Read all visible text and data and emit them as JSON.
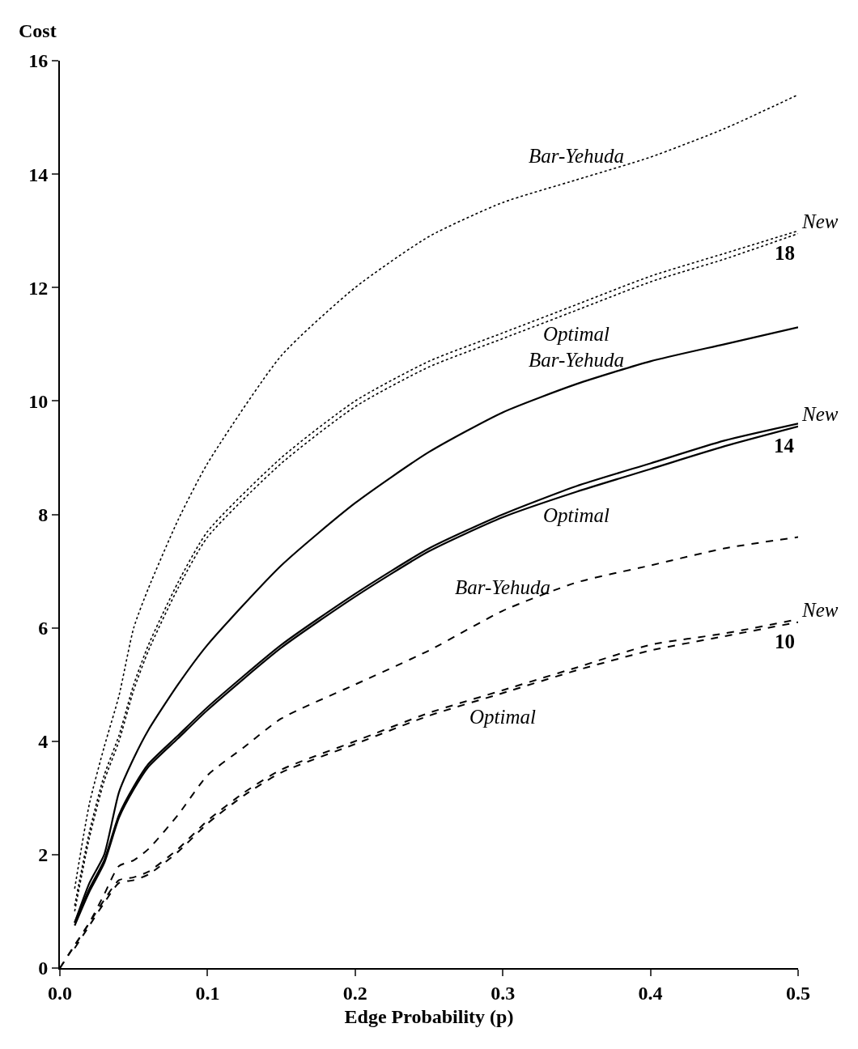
{
  "chart_data": {
    "type": "line",
    "xlabel": "Edge Probability (p)",
    "ylabel": "Cost",
    "xlim": [
      0,
      0.5
    ],
    "ylim": [
      0,
      16
    ],
    "xticks": [
      {
        "value": 0,
        "label": "0.0"
      },
      0.1,
      0.2,
      0.3,
      0.4,
      0.5
    ],
    "yticks": [
      0,
      2,
      4,
      6,
      8,
      10,
      12,
      14,
      16
    ],
    "grid": false,
    "legend": false,
    "series": [
      {
        "name": "Bar-Yehuda",
        "color": "#000000",
        "line_style": "dotted",
        "x": [
          0.01,
          0.02,
          0.03,
          0.04,
          0.05,
          0.06,
          0.08,
          0.1,
          0.15,
          0.2,
          0.25,
          0.3,
          0.35,
          0.4,
          0.45,
          0.5
        ],
        "values": [
          1.4,
          2.9,
          3.9,
          4.8,
          6.0,
          6.7,
          7.9,
          8.9,
          10.8,
          12.0,
          12.9,
          13.5,
          13.9,
          14.3,
          14.8,
          15.4
        ]
      },
      {
        "name": "New",
        "color": "#000000",
        "line_style": "dotted",
        "x": [
          0.01,
          0.02,
          0.03,
          0.04,
          0.05,
          0.06,
          0.08,
          0.1,
          0.15,
          0.2,
          0.25,
          0.3,
          0.35,
          0.4,
          0.45,
          0.5
        ],
        "values": [
          1.1,
          2.4,
          3.4,
          4.1,
          5.0,
          5.7,
          6.8,
          7.7,
          9.0,
          10.0,
          10.7,
          11.2,
          11.7,
          12.2,
          12.6,
          13.0
        ]
      },
      {
        "name": "Optimal",
        "color": "#000000",
        "line_style": "dotted",
        "x": [
          0.01,
          0.02,
          0.03,
          0.04,
          0.05,
          0.06,
          0.08,
          0.1,
          0.15,
          0.2,
          0.25,
          0.3,
          0.35,
          0.4,
          0.45,
          0.5
        ],
        "values": [
          1.0,
          2.3,
          3.3,
          4.0,
          4.9,
          5.6,
          6.7,
          7.6,
          8.9,
          9.9,
          10.6,
          11.1,
          11.6,
          12.1,
          12.5,
          12.95
        ]
      },
      {
        "name": "Bar-Yehuda",
        "color": "#000000",
        "line_style": "solid",
        "x": [
          0.01,
          0.02,
          0.03,
          0.04,
          0.05,
          0.06,
          0.08,
          0.1,
          0.15,
          0.2,
          0.25,
          0.3,
          0.35,
          0.4,
          0.45,
          0.5
        ],
        "values": [
          0.8,
          1.5,
          2.0,
          3.1,
          3.7,
          4.2,
          5.0,
          5.7,
          7.1,
          8.2,
          9.1,
          9.8,
          10.3,
          10.7,
          11.0,
          11.3
        ]
      },
      {
        "name": "New",
        "color": "#000000",
        "line_style": "solid",
        "x": [
          0.01,
          0.02,
          0.03,
          0.04,
          0.05,
          0.06,
          0.08,
          0.1,
          0.15,
          0.2,
          0.25,
          0.3,
          0.35,
          0.4,
          0.45,
          0.5
        ],
        "values": [
          0.8,
          1.4,
          1.9,
          2.7,
          3.2,
          3.6,
          4.1,
          4.6,
          5.7,
          6.6,
          7.4,
          8.0,
          8.5,
          8.9,
          9.3,
          9.6
        ]
      },
      {
        "name": "Optimal",
        "color": "#000000",
        "line_style": "solid",
        "x": [
          0.01,
          0.02,
          0.03,
          0.04,
          0.05,
          0.06,
          0.08,
          0.1,
          0.15,
          0.2,
          0.25,
          0.3,
          0.35,
          0.4,
          0.45,
          0.5
        ],
        "values": [
          0.75,
          1.35,
          1.85,
          2.65,
          3.15,
          3.55,
          4.05,
          4.55,
          5.65,
          6.55,
          7.35,
          7.95,
          8.4,
          8.8,
          9.2,
          9.55
        ]
      },
      {
        "name": "Bar-Yehuda",
        "color": "#000000",
        "line_style": "dashed",
        "x": [
          0,
          0.01,
          0.02,
          0.03,
          0.04,
          0.05,
          0.06,
          0.08,
          0.1,
          0.125,
          0.15,
          0.2,
          0.25,
          0.3,
          0.35,
          0.4,
          0.45,
          0.5
        ],
        "values": [
          0,
          0.4,
          0.8,
          1.3,
          1.8,
          1.9,
          2.1,
          2.7,
          3.4,
          3.9,
          4.4,
          5.0,
          5.6,
          6.3,
          6.8,
          7.1,
          7.4,
          7.6
        ]
      },
      {
        "name": "New",
        "color": "#000000",
        "line_style": "dashed",
        "x": [
          0,
          0.01,
          0.02,
          0.03,
          0.04,
          0.05,
          0.06,
          0.08,
          0.1,
          0.125,
          0.15,
          0.2,
          0.25,
          0.3,
          0.35,
          0.4,
          0.45,
          0.5
        ],
        "values": [
          0,
          0.4,
          0.8,
          1.2,
          1.55,
          1.6,
          1.7,
          2.1,
          2.6,
          3.1,
          3.5,
          4.0,
          4.5,
          4.9,
          5.3,
          5.7,
          5.9,
          6.15
        ]
      },
      {
        "name": "Optimal",
        "color": "#000000",
        "line_style": "dashed",
        "x": [
          0.01,
          0.02,
          0.03,
          0.04,
          0.05,
          0.06,
          0.08,
          0.1,
          0.125,
          0.15,
          0.2,
          0.25,
          0.3,
          0.35,
          0.4,
          0.45,
          0.5
        ],
        "values": [
          0.35,
          0.75,
          1.15,
          1.5,
          1.55,
          1.65,
          2.05,
          2.55,
          3.05,
          3.45,
          3.95,
          4.45,
          4.85,
          5.25,
          5.6,
          5.85,
          6.1
        ]
      }
    ],
    "annotations": [
      "18",
      "14",
      "10"
    ]
  }
}
